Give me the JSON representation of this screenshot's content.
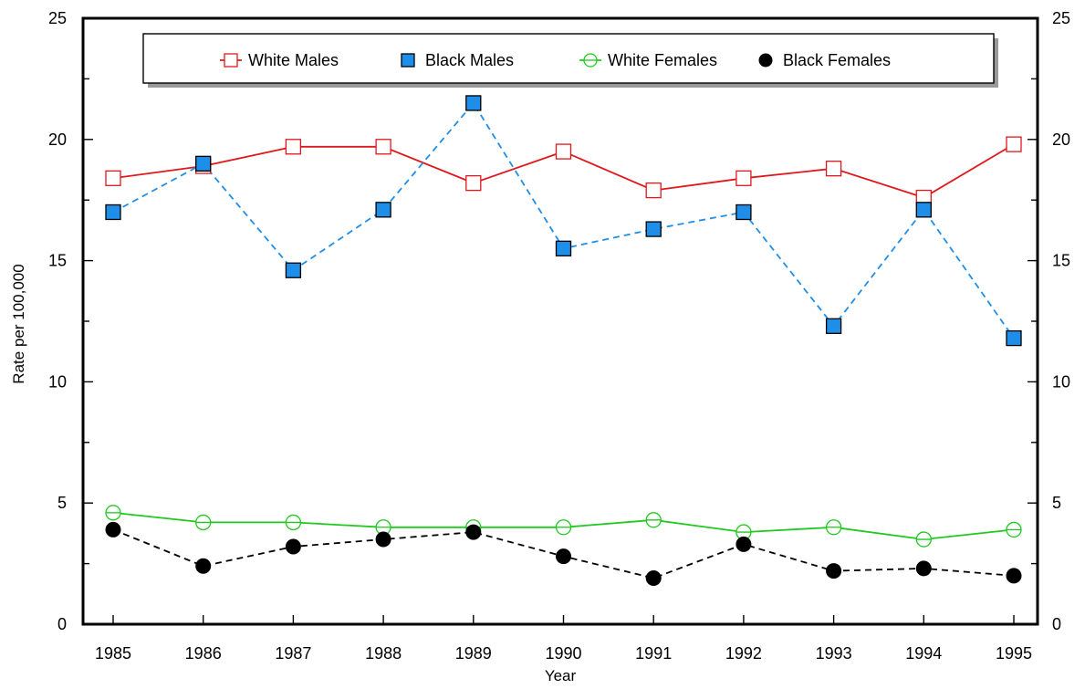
{
  "chart_data": {
    "type": "line",
    "xlabel": "Year",
    "ylabel": "Rate per 100,000",
    "ylim": [
      0,
      25
    ],
    "y_ticks": [
      "0",
      "5",
      "10",
      "15",
      "20",
      "25"
    ],
    "y_major_step": 5,
    "y_minor_step": 2.5,
    "right_axis_mirrors_left": true,
    "grid": false,
    "legend_position": "top",
    "categories": [
      "1985",
      "1986",
      "1987",
      "1988",
      "1989",
      "1990",
      "1991",
      "1992",
      "1993",
      "1994",
      "1995"
    ],
    "series": [
      {
        "name": "White Males",
        "values": [
          18.4,
          18.9,
          19.7,
          19.7,
          18.2,
          19.5,
          17.9,
          18.4,
          18.8,
          17.6,
          19.8
        ],
        "color": "#e0181c",
        "line_style": "solid",
        "marker": "open-square"
      },
      {
        "name": "Black Males",
        "values": [
          17.0,
          19.0,
          14.6,
          17.1,
          21.5,
          15.5,
          16.3,
          17.0,
          12.3,
          17.1,
          11.8
        ],
        "color": "#1e8ee8",
        "line_style": "dashed",
        "marker": "filled-square"
      },
      {
        "name": "White Females",
        "values": [
          4.6,
          4.2,
          4.2,
          4.0,
          4.0,
          4.0,
          4.3,
          3.8,
          4.0,
          3.5,
          3.9
        ],
        "color": "#1fc91f",
        "line_style": "solid",
        "marker": "open-circle-cross"
      },
      {
        "name": "Black Females",
        "values": [
          3.9,
          2.4,
          3.2,
          3.5,
          3.8,
          2.8,
          1.9,
          3.3,
          2.2,
          2.3,
          2.0
        ],
        "color": "#000000",
        "line_style": "dashed",
        "marker": "filled-circle"
      }
    ]
  }
}
